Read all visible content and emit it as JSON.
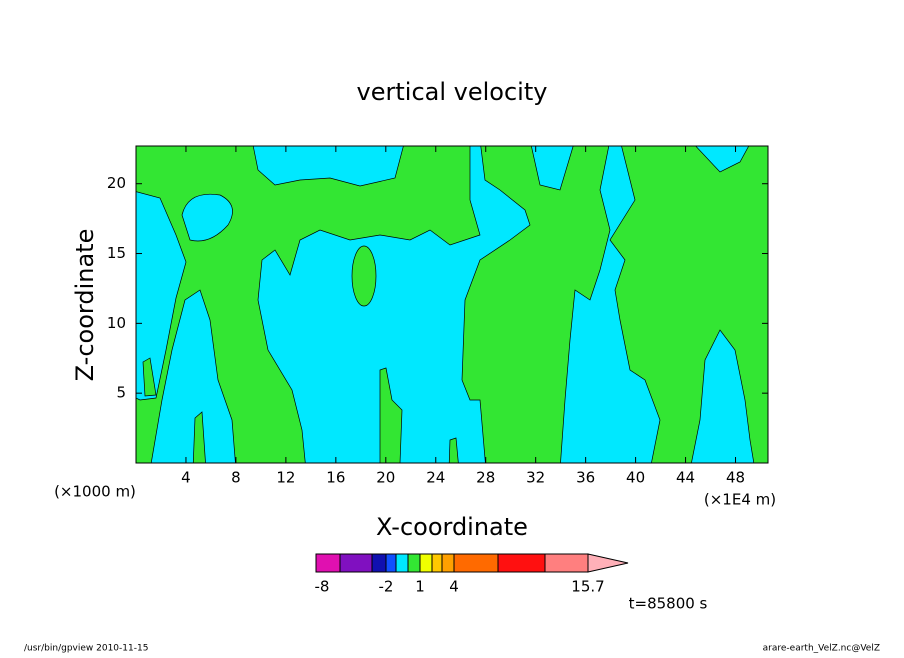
{
  "chart_data": {
    "type": "contour",
    "title": "vertical velocity",
    "x_label": "X-coordinate",
    "y_label": "Z-coordinate",
    "x_unit_left": "(×1000 m)",
    "x_unit_right": "(×1E4 m)",
    "xlim": [
      0,
      50.6
    ],
    "ylim": [
      0,
      22.7
    ],
    "xticks": [
      4,
      8,
      12,
      16,
      20,
      24,
      28,
      32,
      36,
      40,
      44,
      48
    ],
    "yticks": [
      5,
      10,
      15,
      20
    ],
    "colorbar": {
      "colors": [
        "#e010b0",
        "#8010c0",
        "#1010b0",
        "#1050ff",
        "#00e8ff",
        "#33e633",
        "#f0ff00",
        "#ffc800",
        "#ffa000",
        "#ff6a00",
        "#ff1010",
        "#ff7f7f",
        "#ffb0b8"
      ],
      "ticks": [
        -8,
        -2,
        1,
        4,
        15.7
      ]
    },
    "time_label": "t=85800 s",
    "footer_left": "/usr/bin/gpview  2010-11-15",
    "footer_right": "arare-earth_VelZ.nc@VelZ"
  }
}
